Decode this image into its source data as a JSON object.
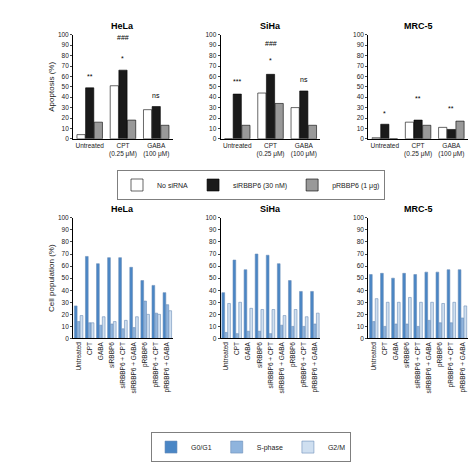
{
  "chart_data": [
    {
      "type": "bar",
      "title": "HeLa",
      "y_label": "Apoptosis (%)",
      "categories": [
        "Untreated",
        "CPT (0.25 μM)",
        "GABA (100 μM)"
      ],
      "series": [
        {
          "name": "No siRNA",
          "color": "#ffffff",
          "values": [
            4,
            51,
            28
          ]
        },
        {
          "name": "siRBBP6 (30 nM)",
          "color": "#1a1a1a",
          "values": [
            49,
            66,
            31
          ]
        },
        {
          "name": "pRBBP6 (1 μg)",
          "color": "#999999",
          "values": [
            16,
            18,
            13
          ]
        }
      ],
      "ylim": [
        0,
        100
      ],
      "yticks": [
        0,
        10,
        20,
        30,
        40,
        50,
        60,
        70,
        80,
        90,
        100
      ],
      "grid": false,
      "legend": "bottom",
      "annotations": [
        {
          "text": "**",
          "x": "Untreated",
          "y": 55
        },
        {
          "text": "###",
          "x": "CPT (0.25 μM)",
          "y": 92
        },
        {
          "text": "*",
          "x": "CPT (0.25 μM)",
          "y": 72
        },
        {
          "text": "ns",
          "x": "GABA (100 μM)",
          "y": 36
        }
      ]
    },
    {
      "type": "bar",
      "title": "SiHa",
      "categories": [
        "Untreated",
        "CPT (0.25 μM)",
        "GABA (100 μM)"
      ],
      "series": [
        {
          "name": "No siRNA",
          "color": "#ffffff",
          "values": [
            0,
            44,
            30
          ]
        },
        {
          "name": "siRBBP6 (30 nM)",
          "color": "#1a1a1a",
          "values": [
            43,
            62,
            46
          ]
        },
        {
          "name": "pRBBP6 (1 μg)",
          "color": "#999999",
          "values": [
            13,
            34,
            13
          ]
        }
      ],
      "ylim": [
        0,
        100
      ],
      "yticks": [
        0,
        10,
        20,
        30,
        40,
        50,
        60,
        70,
        80,
        90,
        100
      ],
      "grid": false,
      "legend": "bottom",
      "annotations": [
        {
          "text": "***",
          "x": "Untreated",
          "y": 50
        },
        {
          "text": "###",
          "x": "CPT (0.25 μM)",
          "y": 86
        },
        {
          "text": "*",
          "x": "CPT (0.25 μM)",
          "y": 70
        },
        {
          "text": "ns",
          "x": "GABA (100 μM)",
          "y": 52
        }
      ]
    },
    {
      "type": "bar",
      "title": "MRC-5",
      "categories": [
        "Untreated",
        "CPT (0.25 μM)",
        "GABA (100 μM)"
      ],
      "series": [
        {
          "name": "No siRNA",
          "color": "#ffffff",
          "values": [
            1,
            16,
            11
          ]
        },
        {
          "name": "siRBBP6 (30 nM)",
          "color": "#1a1a1a",
          "values": [
            14,
            18,
            9
          ]
        },
        {
          "name": "pRBBP6 (1 μg)",
          "color": "#999999",
          "values": [
            0,
            13,
            17
          ]
        }
      ],
      "ylim": [
        0,
        100
      ],
      "yticks": [
        0,
        10,
        20,
        30,
        40,
        50,
        60,
        70,
        80,
        90,
        100
      ],
      "grid": false,
      "legend": "bottom",
      "annotations": [
        {
          "text": "*",
          "x": "Untreated",
          "y": 19
        },
        {
          "text": "**",
          "x": "CPT (0.25 μM)",
          "y": 33
        },
        {
          "text": "**",
          "x": "GABA (100 μM)",
          "y": 24
        }
      ]
    },
    {
      "type": "bar",
      "title": "HeLa",
      "y_label": "Cell population (%)",
      "categories": [
        "Untreated",
        "CPT",
        "GABA",
        "siRBBP6",
        "siRBBP6 + CPT",
        "siRBBP6 + GABA",
        "pRBBP6",
        "pRBBP6 + CPT",
        "pRBBP6 + GABA"
      ],
      "series": [
        {
          "name": "G0/G1",
          "color": "#4a86c5",
          "values": [
            27,
            68,
            62,
            67,
            67,
            59,
            48,
            44,
            38
          ]
        },
        {
          "name": "S-phase",
          "color": "#8fb4dd",
          "values": [
            14,
            13,
            11,
            12,
            8,
            9,
            31,
            21,
            28
          ]
        },
        {
          "name": "G2/M",
          "color": "#cfdff0",
          "values": [
            19,
            13,
            18,
            14,
            15,
            18,
            20,
            20,
            23
          ]
        }
      ],
      "ylim": [
        0,
        100
      ],
      "yticks": [
        0,
        10,
        20,
        30,
        40,
        50,
        60,
        70,
        80,
        90,
        100
      ],
      "grid": false,
      "legend": "bottom"
    },
    {
      "type": "bar",
      "title": "SiHa",
      "categories": [
        "Untreated",
        "CPT",
        "GABA",
        "siRBBP6",
        "siRBBP6 + CPT",
        "siRBBP6 + GABA",
        "pRBBP6",
        "pRBBP6 + CPT",
        "pRBBP6 + GABA"
      ],
      "series": [
        {
          "name": "G0/G1",
          "color": "#4a86c5",
          "values": [
            38,
            65,
            57,
            70,
            69,
            62,
            48,
            39,
            39
          ]
        },
        {
          "name": "S-phase",
          "color": "#8fb4dd",
          "values": [
            5,
            4,
            6,
            6,
            4,
            11,
            10,
            10,
            12
          ]
        },
        {
          "name": "G2/M",
          "color": "#cfdff0",
          "values": [
            29,
            30,
            25,
            24,
            24,
            19,
            24,
            18,
            21
          ]
        }
      ],
      "ylim": [
        0,
        100
      ],
      "yticks": [
        0,
        10,
        20,
        30,
        40,
        50,
        60,
        70,
        80,
        90,
        100
      ],
      "grid": false,
      "legend": "bottom"
    },
    {
      "type": "bar",
      "title": "MRC-5",
      "categories": [
        "Untreated",
        "CPT",
        "GABA",
        "siRBBP6",
        "siRBBP6 + CPT",
        "siRBBP6 + GABA",
        "pRBBP6",
        "pRBBP6 + CPT",
        "pRBBP6 + GABA"
      ],
      "series": [
        {
          "name": "G0/G1",
          "color": "#4a86c5",
          "values": [
            53,
            54,
            50,
            54,
            53,
            55,
            55,
            57,
            57
          ]
        },
        {
          "name": "S-phase",
          "color": "#8fb4dd",
          "values": [
            14,
            10,
            12,
            12,
            10,
            15,
            13,
            13,
            17
          ]
        },
        {
          "name": "G2/M",
          "color": "#cfdff0",
          "values": [
            33,
            30,
            30,
            34,
            30,
            30,
            29,
            30,
            27
          ]
        }
      ],
      "ylim": [
        0,
        100
      ],
      "yticks": [
        0,
        10,
        20,
        30,
        40,
        50,
        60,
        70,
        80,
        90,
        100
      ],
      "grid": false,
      "legend": "bottom"
    }
  ]
}
